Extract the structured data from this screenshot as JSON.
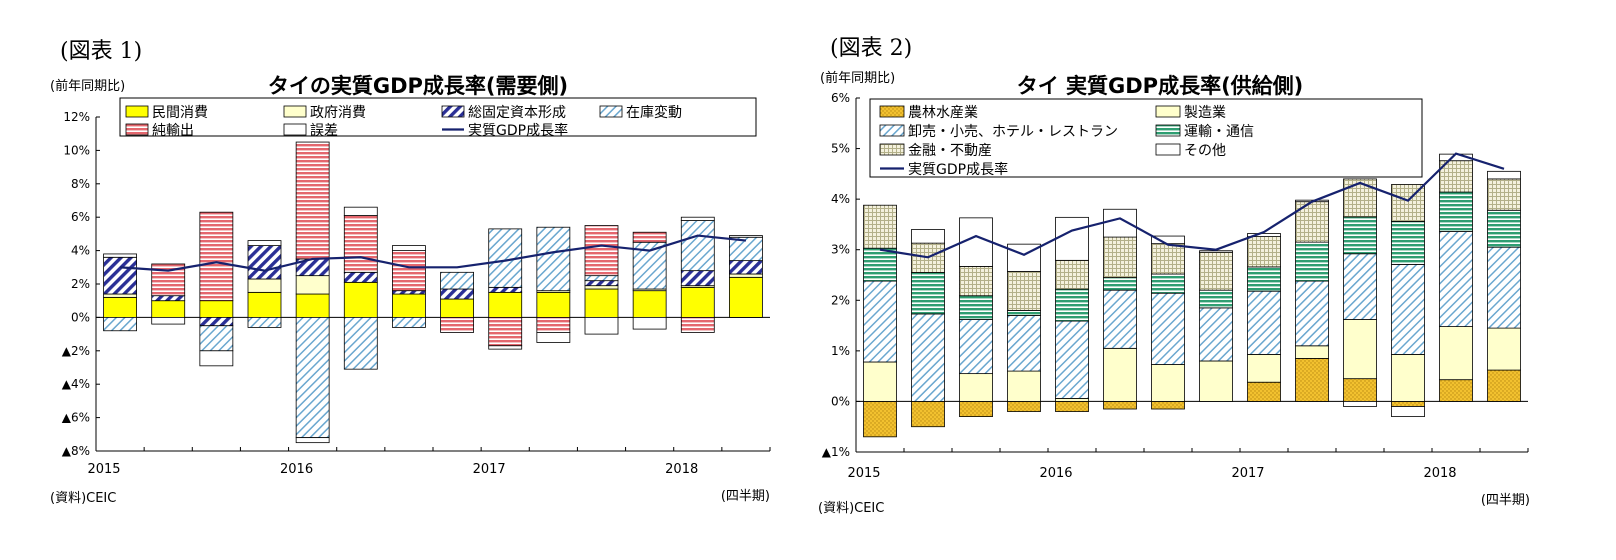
{
  "chart_data": [
    {
      "type": "bar",
      "stacked": true,
      "figure_label": "(図表 1)",
      "title": "タイの実質GDP成長率(需要側)",
      "unit_label": "(前年同期比)",
      "source": "(資料)CEIC",
      "period_label": "(四半期)",
      "ylim": [
        -8,
        12
      ],
      "yticks": [
        {
          "v": 12,
          "label": "12%"
        },
        {
          "v": 10,
          "label": "10%"
        },
        {
          "v": 8,
          "label": "8%"
        },
        {
          "v": 6,
          "label": "6%"
        },
        {
          "v": 4,
          "label": "4%"
        },
        {
          "v": 2,
          "label": "2%"
        },
        {
          "v": 0,
          "label": "0%"
        },
        {
          "v": -2,
          "label": "▲2%"
        },
        {
          "v": -4,
          "label": "▲4%"
        },
        {
          "v": -6,
          "label": "▲6%"
        },
        {
          "v": -8,
          "label": "▲8%"
        }
      ],
      "year_labels": [
        {
          "index": 0,
          "label": "2015"
        },
        {
          "index": 4,
          "label": "2016"
        },
        {
          "index": 8,
          "label": "2017"
        },
        {
          "index": 12,
          "label": "2018"
        }
      ],
      "grid": false,
      "legend_placement": "top",
      "legend_columns": 4,
      "series": [
        {
          "name": "民間消費",
          "pattern": "yellow",
          "values": [
            1.2,
            1.0,
            1.0,
            1.5,
            1.4,
            2.1,
            1.4,
            1.1,
            1.5,
            1.5,
            1.7,
            1.6,
            1.8,
            2.4
          ]
        },
        {
          "name": "政府消費",
          "pattern": "cream",
          "values": [
            0.2,
            0.0,
            0.0,
            0.8,
            1.1,
            0.0,
            0.0,
            0.0,
            0.0,
            0.1,
            0.2,
            0.1,
            0.1,
            0.2
          ]
        },
        {
          "name": "総固定資本形成",
          "pattern": "navyHatch",
          "values": [
            2.2,
            0.3,
            -0.5,
            2.0,
            1.0,
            0.6,
            0.2,
            0.6,
            0.3,
            0.0,
            0.3,
            0.0,
            0.9,
            0.8
          ]
        },
        {
          "name": "在庫変動",
          "pattern": "lightHatch",
          "values": [
            -0.8,
            0.0,
            -1.5,
            -0.6,
            -7.2,
            -3.1,
            -0.6,
            1.0,
            3.5,
            3.8,
            0.3,
            2.8,
            3.0,
            1.4
          ]
        },
        {
          "name": "純輸出",
          "pattern": "redStripe",
          "values": [
            0.0,
            1.9,
            5.3,
            0.0,
            7.0,
            3.4,
            2.4,
            -0.9,
            -1.7,
            -0.9,
            3.0,
            0.6,
            -0.9,
            0.0
          ]
        },
        {
          "name": "誤差",
          "pattern": "white",
          "values": [
            0.2,
            -0.4,
            -0.9,
            0.3,
            -0.3,
            0.5,
            0.3,
            0.0,
            -0.2,
            -0.6,
            -1.0,
            -0.7,
            0.2,
            0.1
          ]
        }
      ],
      "line": {
        "name": "実質GDP成長率",
        "color": "#16226e",
        "values": [
          3.0,
          2.8,
          3.3,
          2.8,
          3.5,
          3.6,
          3.0,
          3.0,
          3.4,
          3.9,
          4.3,
          4.0,
          4.9,
          4.6
        ]
      }
    },
    {
      "type": "bar",
      "stacked": true,
      "figure_label": "(図表 2)",
      "title": "タイ  実質GDP成長率(供給側)",
      "unit_label": "(前年同期比)",
      "source": "(資料)CEIC",
      "period_label": "(四半期)",
      "ylim": [
        -1,
        6
      ],
      "yticks": [
        {
          "v": 6,
          "label": "6%"
        },
        {
          "v": 5,
          "label": "5%"
        },
        {
          "v": 4,
          "label": "4%"
        },
        {
          "v": 3,
          "label": "3%"
        },
        {
          "v": 2,
          "label": "2%"
        },
        {
          "v": 1,
          "label": "1%"
        },
        {
          "v": 0,
          "label": "0%"
        },
        {
          "v": -1,
          "label": "▲1%"
        }
      ],
      "year_labels": [
        {
          "index": 0,
          "label": "2015"
        },
        {
          "index": 4,
          "label": "2016"
        },
        {
          "index": 8,
          "label": "2017"
        },
        {
          "index": 12,
          "label": "2018"
        }
      ],
      "grid": false,
      "legend_placement": "top",
      "legend_columns": 2,
      "series": [
        {
          "name": "農林水産業",
          "pattern": "goldDots",
          "values": [
            -0.7,
            -0.5,
            -0.3,
            -0.2,
            -0.2,
            -0.15,
            -0.15,
            0.0,
            0.38,
            0.85,
            0.45,
            -0.1,
            0.43,
            0.62
          ]
        },
        {
          "name": "製造業",
          "pattern": "cream",
          "values": [
            0.78,
            0.0,
            0.55,
            0.6,
            0.06,
            1.05,
            0.73,
            0.8,
            0.55,
            0.25,
            1.17,
            0.93,
            1.05,
            0.83
          ]
        },
        {
          "name": "卸売・小売、ホテル・レストラン",
          "pattern": "lightHatch",
          "values": [
            1.6,
            1.73,
            1.07,
            1.1,
            1.53,
            1.15,
            1.41,
            1.05,
            1.25,
            1.28,
            1.3,
            1.78,
            1.88,
            1.6
          ]
        },
        {
          "name": "運輸・通信",
          "pattern": "greenStripe",
          "values": [
            0.65,
            0.82,
            0.47,
            0.1,
            0.63,
            0.25,
            0.38,
            0.35,
            0.48,
            0.77,
            0.73,
            0.85,
            0.78,
            0.73
          ]
        },
        {
          "name": "金融・不動産",
          "pattern": "tanGrid",
          "values": [
            0.85,
            0.58,
            0.58,
            0.77,
            0.57,
            0.8,
            0.6,
            0.75,
            0.6,
            0.8,
            0.75,
            0.73,
            0.62,
            0.62
          ]
        },
        {
          "name": "その他",
          "pattern": "white",
          "values": [
            0.0,
            0.27,
            0.96,
            0.54,
            0.85,
            0.55,
            0.15,
            0.03,
            0.06,
            0.03,
            -0.1,
            -0.2,
            0.13,
            0.15
          ]
        }
      ],
      "line": {
        "name": "実質GDP成長率",
        "color": "#16226e",
        "values": [
          3.0,
          2.85,
          3.27,
          2.9,
          3.38,
          3.62,
          3.1,
          3.0,
          3.35,
          3.95,
          4.32,
          3.97,
          4.9,
          4.6
        ]
      }
    }
  ]
}
